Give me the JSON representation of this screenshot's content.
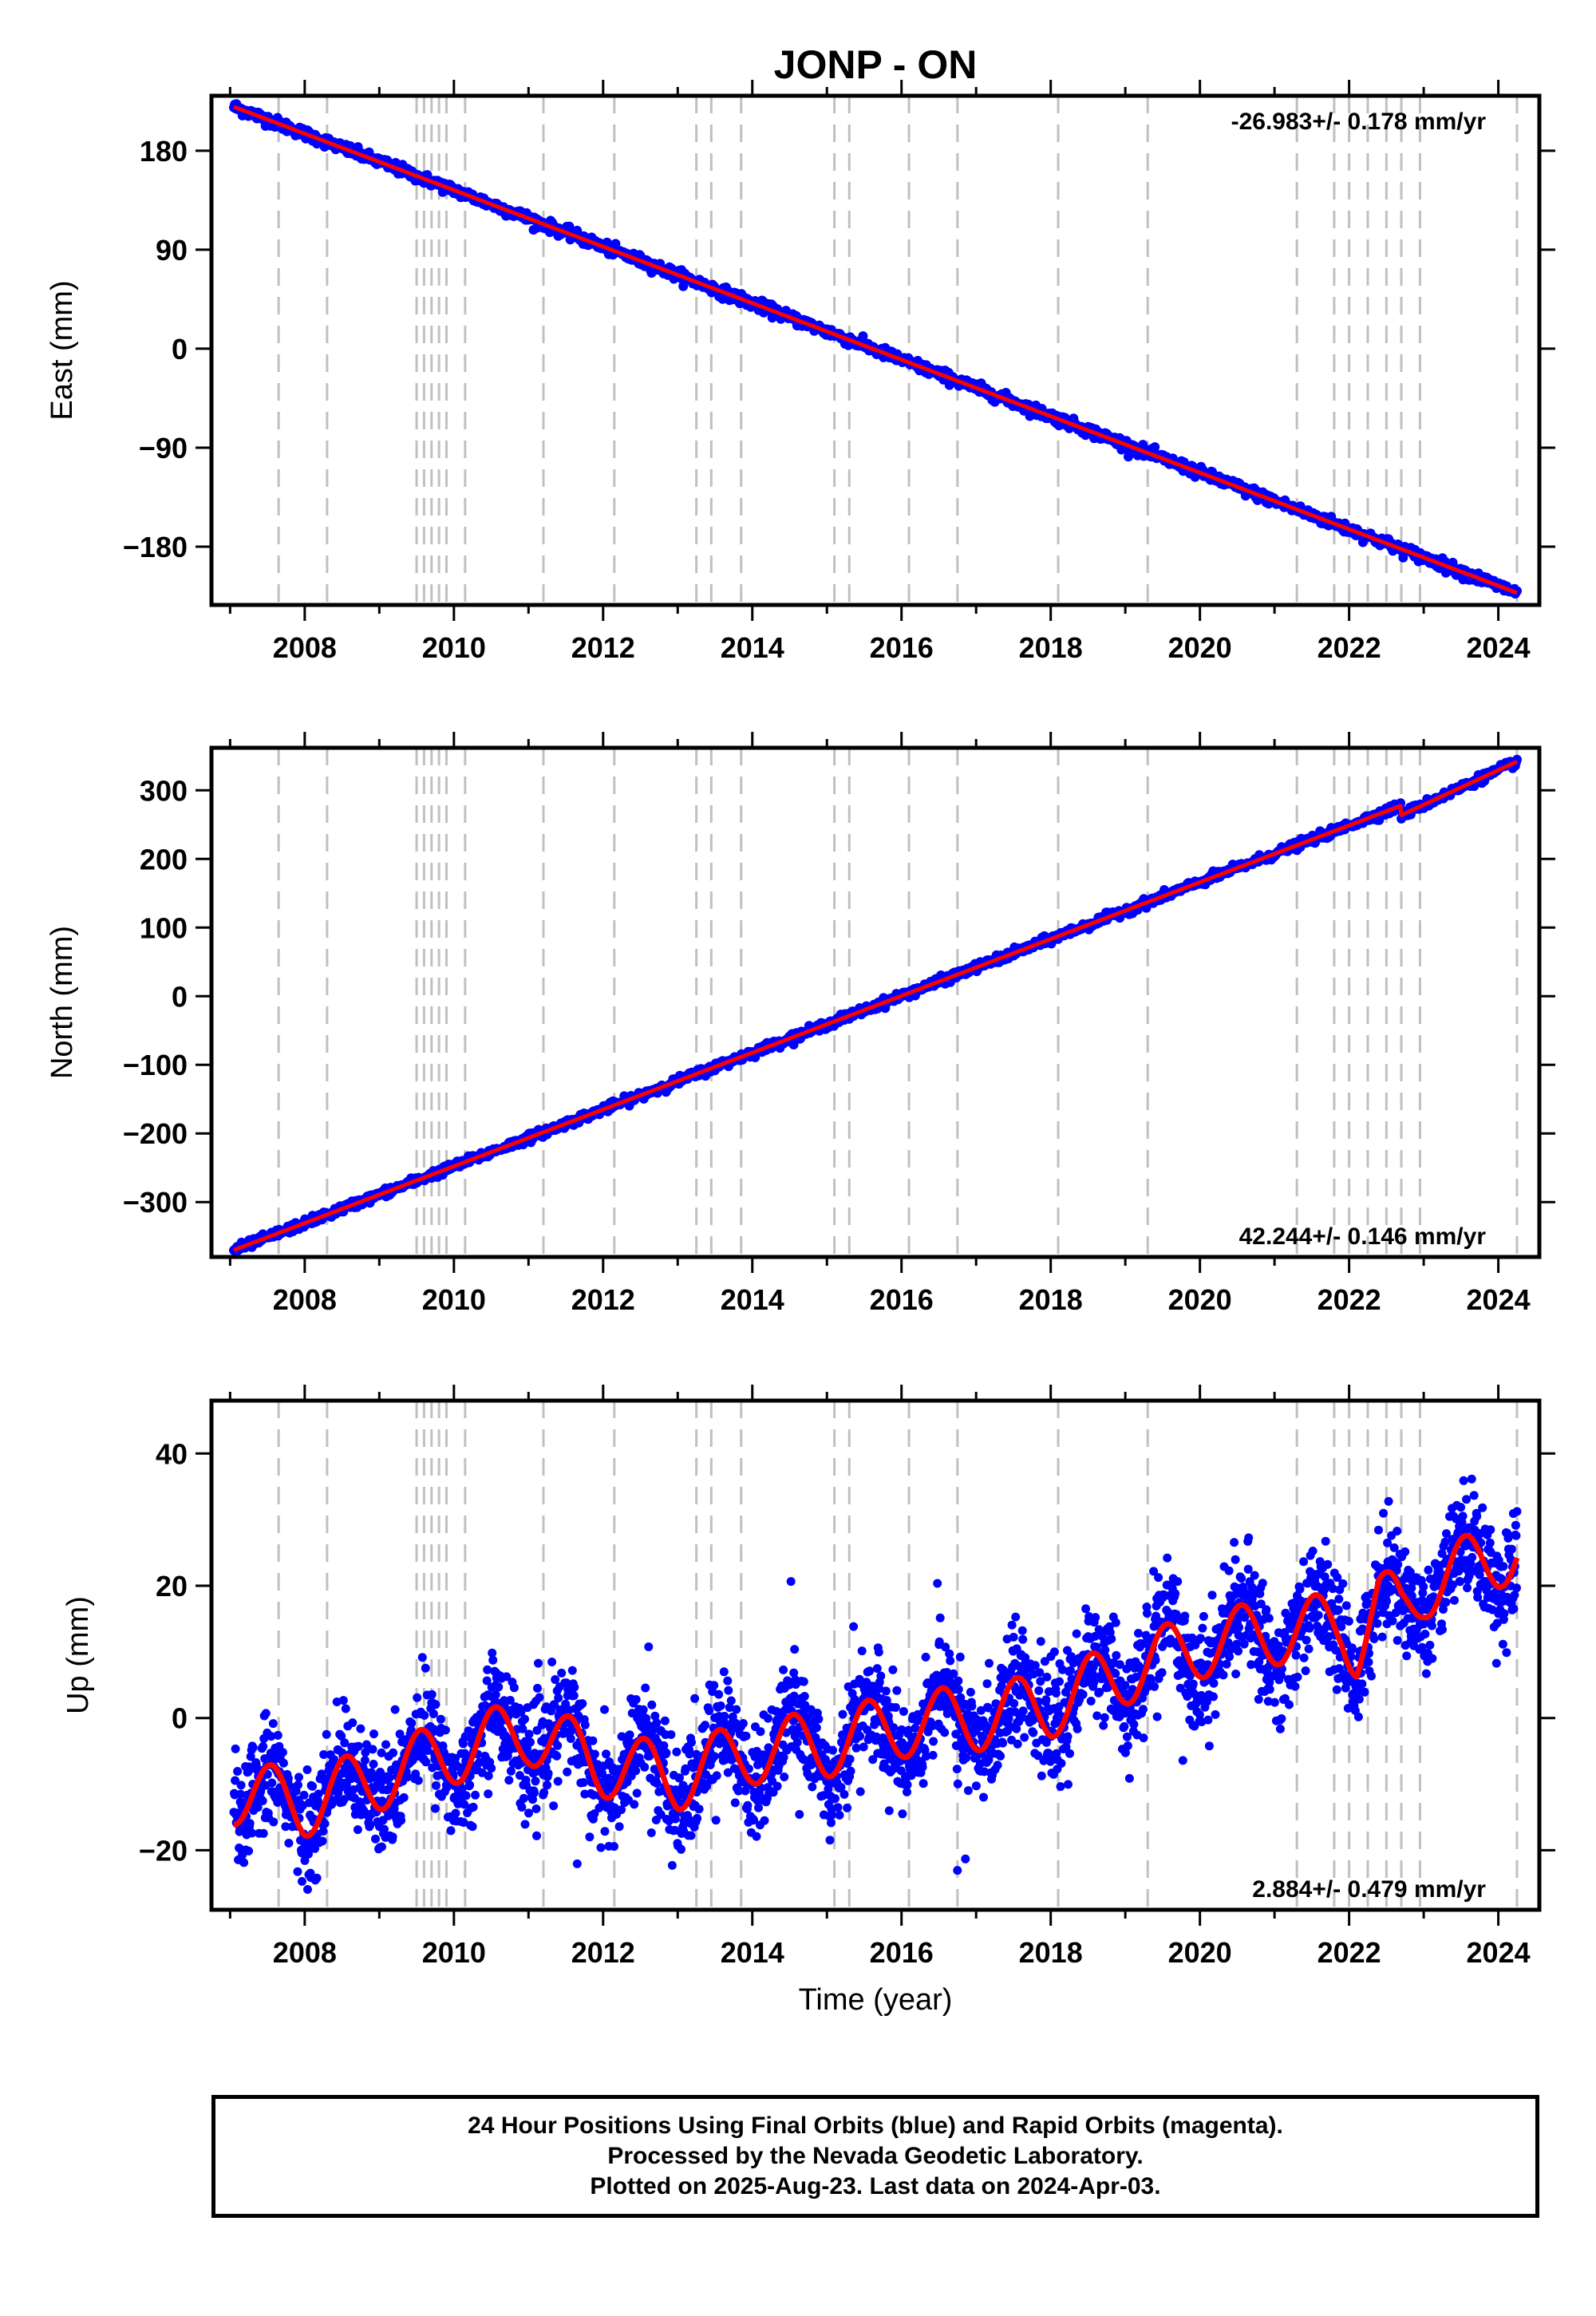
{
  "title": "JONP - ON",
  "xlabel": "Time (year)",
  "footer": {
    "line1": "24 Hour Positions Using Final Orbits (blue) and Rapid Orbits (magenta).",
    "line2": "Processed by the Nevada Geodetic Laboratory.",
    "line3": "Plotted on 2025-Aug-23. Last data on 2024-Apr-03."
  },
  "colors": {
    "observations": "#0000ff",
    "model": "#ff0000",
    "events": "#c0c0c0",
    "axes": "#000000"
  },
  "chart_data": [
    {
      "type": "scatter",
      "component": "East",
      "ylabel": "East (mm)",
      "xlim": [
        2006.75,
        2024.55
      ],
      "ylim": [
        -233,
        230
      ],
      "xticks": [
        2008,
        2010,
        2012,
        2014,
        2016,
        2018,
        2020,
        2022,
        2024
      ],
      "yticks": [
        -180,
        -90,
        0,
        90,
        180
      ],
      "ytick_labels": [
        "−180",
        "−90",
        "0",
        "90",
        "180"
      ],
      "rate": "-26.983+/- 0.178 mm/yr",
      "rate_position": "top-right",
      "trend": {
        "start": [
          2007.05,
          220
        ],
        "end": [
          2024.25,
          -222
        ]
      },
      "noise_mm": 2.5
    },
    {
      "type": "scatter",
      "component": "North",
      "ylabel": "North (mm)",
      "xlim": [
        2006.75,
        2024.55
      ],
      "ylim": [
        -380,
        362
      ],
      "xticks": [
        2008,
        2010,
        2012,
        2014,
        2016,
        2018,
        2020,
        2022,
        2024
      ],
      "yticks": [
        -300,
        -200,
        -100,
        0,
        100,
        200,
        300
      ],
      "ytick_labels": [
        "−300",
        "−200",
        "−100",
        "0",
        "100",
        "200",
        "300"
      ],
      "rate": "42.244+/- 0.146 mm/yr",
      "rate_position": "bottom-right",
      "trend": {
        "start": [
          2007.05,
          -370
        ],
        "end": [
          2024.25,
          342
        ]
      },
      "noise_mm": 3,
      "steps": [
        {
          "x": 2022.7,
          "delta": -14
        }
      ]
    },
    {
      "type": "scatter",
      "component": "Up",
      "ylabel": "Up (mm)",
      "xlim": [
        2006.75,
        2024.55
      ],
      "ylim": [
        -29,
        48
      ],
      "xticks": [
        2008,
        2010,
        2012,
        2014,
        2016,
        2018,
        2020,
        2022,
        2024
      ],
      "yticks": [
        -20,
        0,
        20,
        40
      ],
      "ytick_labels": [
        "−20",
        "0",
        "20",
        "40"
      ],
      "rate": "2.884+/- 0.479 mm/yr",
      "rate_position": "bottom-right",
      "seasonal_amplitude_mm": 5,
      "noise_mm": 4,
      "model_nodes": [
        [
          2007.0,
          -11
        ],
        [
          2008.0,
          -13
        ],
        [
          2009.0,
          -9
        ],
        [
          2010.0,
          -5
        ],
        [
          2011.0,
          -2
        ],
        [
          2012.0,
          -7
        ],
        [
          2013.0,
          -9
        ],
        [
          2014.0,
          -5
        ],
        [
          2015.0,
          -4
        ],
        [
          2016.0,
          -1
        ],
        [
          2017.0,
          0
        ],
        [
          2018.0,
          2
        ],
        [
          2019.0,
          7
        ],
        [
          2020.0,
          11
        ],
        [
          2021.0,
          13
        ],
        [
          2021.9,
          14
        ],
        [
          2022.1,
          11
        ],
        [
          2022.4,
          18
        ],
        [
          2022.7,
          16
        ],
        [
          2023.0,
          20
        ],
        [
          2024.3,
          26
        ]
      ]
    }
  ],
  "events": [
    2007.65,
    2008.3,
    2009.5,
    2009.6,
    2009.7,
    2009.8,
    2009.9,
    2010.15,
    2011.2,
    2012.15,
    2013.25,
    2013.45,
    2013.85,
    2015.1,
    2015.3,
    2016.1,
    2016.75,
    2018.1,
    2019.3,
    2021.3,
    2021.8,
    2022.0,
    2022.25,
    2022.5,
    2022.7,
    2022.95,
    2024.25
  ]
}
